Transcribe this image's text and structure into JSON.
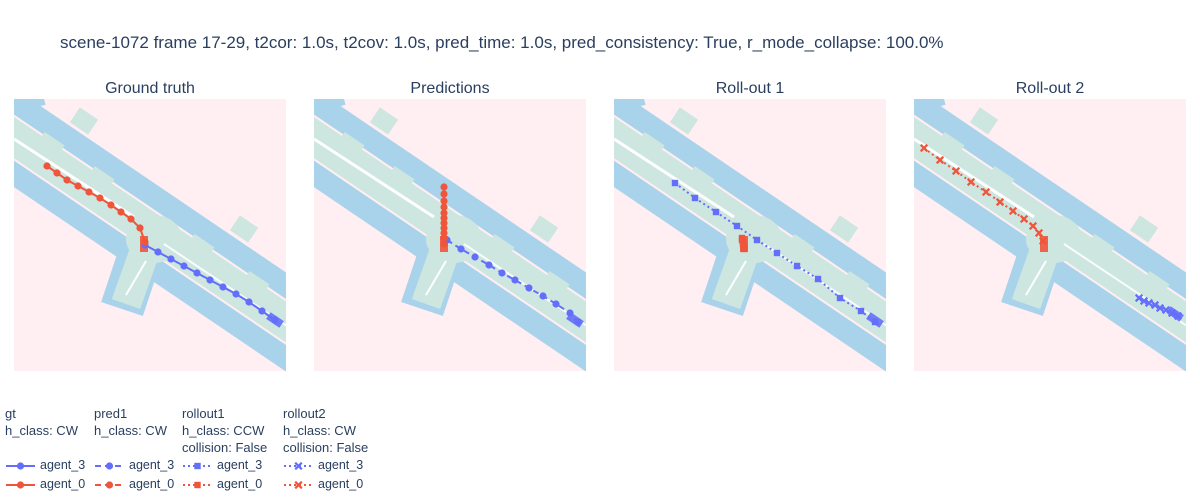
{
  "title": "scene-1072 frame 17-29, t2cor: 1.0s, t2cov: 1.0s, pred_time: 1.0s, pred_consistency: True, r_mode_collapse: 100.0%",
  "colors": {
    "agent_3": "#636efa",
    "agent_0": "#ef553b",
    "background": "#ffeef2",
    "drivable": "#cde6e0",
    "sidewalk": "#a9d3ea",
    "lane_line": "#ffffff"
  },
  "panels": [
    {
      "title": "Ground truth"
    },
    {
      "title": "Predictions"
    },
    {
      "title": "Roll-out 1"
    },
    {
      "title": "Roll-out 2"
    }
  ],
  "legend": [
    {
      "group": "gt",
      "info": [
        "h_class: CW"
      ],
      "marker": "circle",
      "dash": "solid",
      "items": [
        {
          "name": "agent_3",
          "color": "#636efa"
        },
        {
          "name": "agent_0",
          "color": "#ef553b"
        }
      ]
    },
    {
      "group": "pred1",
      "info": [
        "h_class: CW"
      ],
      "marker": "circle",
      "dash": "dash",
      "items": [
        {
          "name": "agent_3",
          "color": "#636efa"
        },
        {
          "name": "agent_0",
          "color": "#ef553b"
        }
      ]
    },
    {
      "group": "rollout1",
      "info": [
        "h_class: CCW",
        "collision: False"
      ],
      "marker": "square",
      "dash": "dot",
      "items": [
        {
          "name": "agent_3",
          "color": "#636efa"
        },
        {
          "name": "agent_0",
          "color": "#ef553b"
        }
      ]
    },
    {
      "group": "rollout2",
      "info": [
        "h_class: CW",
        "collision: False"
      ],
      "marker": "x",
      "dash": "dot",
      "items": [
        {
          "name": "agent_3",
          "color": "#636efa"
        },
        {
          "name": "agent_0",
          "color": "#ef553b"
        }
      ]
    }
  ],
  "chart_data": [
    {
      "type": "scatter",
      "title": "Ground truth",
      "series": [
        {
          "name": "agent_3",
          "marker": "circle",
          "line": "solid",
          "color": "#636efa",
          "x": [
            145,
            158,
            171,
            184,
            197,
            210,
            223,
            236,
            249,
            262,
            275
          ],
          "y": [
            245,
            252,
            259,
            266,
            273,
            280,
            287,
            294,
            302,
            311,
            320
          ]
        },
        {
          "name": "agent_0",
          "marker": "circle",
          "line": "solid",
          "color": "#ef553b",
          "x": [
            47,
            57,
            67,
            78,
            89,
            100,
            111,
            121,
            131,
            140,
            145
          ],
          "y": [
            166,
            173,
            180,
            186,
            192,
            198,
            205,
            212,
            219,
            228,
            242
          ]
        }
      ]
    },
    {
      "type": "scatter",
      "title": "Predictions",
      "series": [
        {
          "name": "agent_3",
          "marker": "circle",
          "line": "dash",
          "color": "#636efa",
          "x": [
            447,
            461,
            475,
            489,
            502,
            515,
            529,
            543,
            556,
            570,
            578
          ],
          "y": [
            240,
            249,
            257,
            265,
            273,
            280,
            288,
            296,
            304,
            313,
            322
          ]
        },
        {
          "name": "agent_0",
          "marker": "circle",
          "line": "dash",
          "color": "#ef553b",
          "x": [
            444,
            444,
            444,
            444,
            444,
            444,
            444,
            444,
            444,
            444,
            444
          ],
          "y": [
            187,
            194,
            201,
            207,
            213,
            218,
            223,
            228,
            233,
            238,
            244
          ]
        }
      ]
    },
    {
      "type": "scatter",
      "title": "Roll-out 1",
      "series": [
        {
          "name": "agent_3",
          "marker": "square",
          "line": "dot",
          "color": "#636efa",
          "x": [
            675,
            695,
            716,
            737,
            757,
            777,
            797,
            818,
            840,
            861,
            875
          ],
          "y": [
            183,
            198,
            212,
            226,
            240,
            253,
            266,
            279,
            298,
            311,
            322
          ]
        },
        {
          "name": "agent_0",
          "marker": "square",
          "line": "dot",
          "color": "#ef553b",
          "x": [
            742,
            742,
            743,
            743,
            744,
            744
          ],
          "y": [
            238,
            240,
            242,
            244,
            246,
            249
          ]
        }
      ]
    },
    {
      "type": "scatter",
      "title": "Roll-out 2",
      "series": [
        {
          "name": "agent_3",
          "marker": "x",
          "line": "dot",
          "color": "#636efa",
          "x": [
            1139,
            1144,
            1149,
            1155,
            1160,
            1166,
            1172,
            1178
          ],
          "y": [
            298,
            301,
            303,
            305,
            308,
            310,
            313,
            316
          ]
        },
        {
          "name": "agent_0",
          "marker": "x",
          "line": "dot",
          "color": "#ef553b",
          "x": [
            924,
            940,
            956,
            971,
            986,
            1000,
            1013,
            1024,
            1033,
            1039,
            1043
          ],
          "y": [
            148,
            160,
            171,
            182,
            192,
            202,
            211,
            219,
            226,
            233,
            241
          ]
        }
      ]
    }
  ]
}
